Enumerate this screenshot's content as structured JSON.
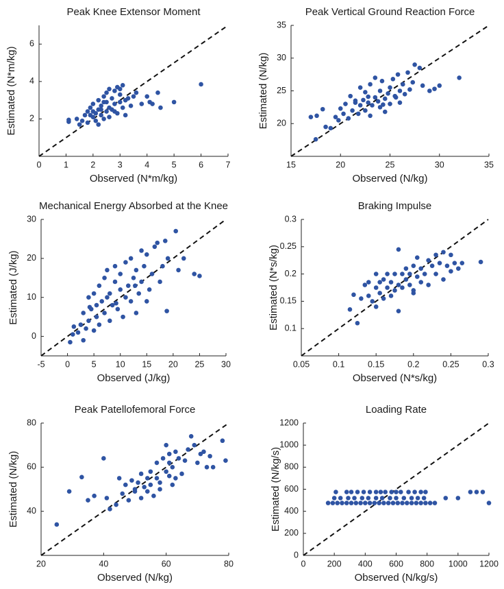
{
  "chart_data": [
    {
      "type": "scatter",
      "title": "Peak Knee Extensor Moment",
      "x_label": "Observed (N*m/kg)",
      "y_label": "Estimated (N*m/kg)",
      "xlim": [
        0,
        7
      ],
      "ylim": [
        0,
        7
      ],
      "xticks": [
        0,
        1,
        2,
        3,
        4,
        5,
        6,
        7
      ],
      "yticks": [
        2,
        4,
        6
      ],
      "identity_line": true,
      "color": "#2f54a3",
      "x": [
        1.1,
        1.1,
        1.4,
        1.5,
        1.6,
        1.7,
        1.8,
        1.8,
        1.9,
        2.0,
        2.0,
        2.1,
        2.1,
        2.2,
        2.2,
        2.3,
        2.3,
        2.4,
        2.4,
        2.5,
        2.5,
        2.5,
        2.6,
        2.6,
        2.7,
        2.7,
        2.8,
        2.8,
        2.9,
        2.9,
        3.0,
        3.0,
        3.1,
        3.1,
        3.2,
        3.2,
        3.3,
        3.4,
        3.5,
        3.6,
        3.8,
        4.0,
        4.1,
        4.2,
        4.4,
        4.5,
        5.0,
        6.0,
        2.2,
        2.6,
        2.0,
        2.4,
        1.9,
        2.8,
        3.0,
        2.3
      ],
      "values": [
        1.95,
        1.85,
        2.0,
        1.7,
        1.9,
        2.2,
        1.8,
        2.4,
        2.6,
        2.1,
        2.8,
        2.3,
        1.9,
        2.5,
        3.0,
        2.2,
        2.7,
        2.0,
        3.2,
        2.4,
        2.9,
        3.4,
        2.1,
        2.6,
        3.1,
        2.5,
        2.8,
        3.5,
        2.3,
        3.7,
        2.9,
        3.3,
        2.6,
        3.8,
        3.0,
        2.2,
        3.1,
        2.7,
        3.2,
        3.4,
        2.8,
        3.2,
        2.9,
        2.8,
        3.4,
        2.6,
        2.9,
        3.85,
        1.7,
        3.6,
        2.4,
        2.9,
        2.2,
        2.4,
        3.6,
        2.5
      ]
    },
    {
      "type": "scatter",
      "title": "Peak Vertical Ground Reaction Force",
      "x_label": "Observed (N/kg)",
      "y_label": "Estimated (N/kg)",
      "xlim": [
        15,
        35
      ],
      "ylim": [
        15,
        35
      ],
      "xticks": [
        15,
        20,
        25,
        30,
        35
      ],
      "yticks": [
        20,
        25,
        30,
        35
      ],
      "identity_line": true,
      "color": "#2f54a3",
      "x": [
        17.0,
        17.5,
        17.6,
        18.2,
        18.5,
        19.0,
        19.5,
        19.8,
        20.0,
        20.3,
        20.5,
        20.8,
        21.0,
        21.2,
        21.5,
        21.8,
        22.0,
        22.0,
        22.3,
        22.5,
        22.5,
        22.8,
        23.0,
        23.0,
        23.2,
        23.5,
        23.5,
        23.8,
        24.0,
        24.0,
        24.2,
        24.5,
        24.5,
        24.8,
        25.0,
        25.0,
        25.3,
        25.5,
        25.8,
        26.0,
        26.0,
        26.3,
        26.5,
        26.8,
        27.0,
        27.3,
        27.5,
        28.0,
        28.3,
        29.0,
        29.5,
        30.0,
        32.0,
        21.5,
        22.8,
        24.3,
        25.6
      ],
      "values": [
        21.0,
        17.6,
        21.2,
        22.2,
        19.5,
        19.3,
        21.0,
        20.5,
        22.3,
        21.5,
        23.0,
        20.8,
        24.2,
        22.0,
        23.5,
        21.5,
        22.8,
        25.5,
        23.6,
        22.0,
        24.8,
        23.2,
        21.2,
        26.0,
        22.8,
        24.0,
        27.0,
        23.4,
        22.5,
        25.0,
        26.5,
        23.8,
        21.8,
        24.6,
        25.5,
        23.0,
        26.8,
        24.2,
        27.5,
        25.0,
        23.2,
        26.0,
        24.5,
        27.8,
        25.2,
        26.3,
        29.0,
        28.5,
        25.8,
        25.0,
        25.3,
        25.8,
        27.0,
        23.2,
        24.1,
        22.9,
        24.0
      ]
    },
    {
      "type": "scatter",
      "title": "Mechanical Energy Absorbed at the Knee",
      "x_label": "Observed (J/kg)",
      "y_label": "Estimated (J/kg)",
      "xlim": [
        -5,
        30
      ],
      "ylim": [
        -5,
        30
      ],
      "xticks": [
        -5,
        0,
        5,
        10,
        15,
        20,
        25,
        30
      ],
      "yticks": [
        0,
        10,
        20,
        30
      ],
      "identity_line": true,
      "color": "#2f54a3",
      "x": [
        0.5,
        1,
        1.2,
        2,
        2.5,
        3,
        3,
        3.5,
        4,
        4,
        4.5,
        5,
        5,
        5.5,
        5.5,
        6,
        6,
        6.5,
        7,
        7,
        7.5,
        7.5,
        8,
        8,
        8.5,
        9,
        9,
        9.5,
        10,
        10,
        10.5,
        11,
        11,
        11.5,
        12,
        12,
        12.5,
        13,
        13,
        13.5,
        14,
        14,
        14.5,
        15,
        15,
        15.5,
        16,
        16.5,
        17,
        17.5,
        18,
        18.5,
        19,
        18.8,
        20.5,
        21,
        22,
        24,
        25,
        4.2,
        9.2,
        12.8
      ],
      "values": [
        -1.5,
        0.5,
        2.5,
        1,
        3,
        -1,
        6,
        2,
        4,
        10,
        7,
        1.5,
        11,
        5,
        8,
        3,
        13,
        9,
        6,
        15,
        10,
        17,
        4,
        11,
        8,
        14,
        18,
        7,
        12,
        16,
        5,
        10,
        19,
        13,
        9,
        20,
        15,
        6,
        17,
        11,
        14,
        22,
        18,
        9,
        21,
        12,
        16,
        23,
        24,
        14,
        18,
        24.5,
        20,
        6.5,
        27,
        17,
        20,
        16,
        15.5,
        7.5,
        8.5,
        13
      ]
    },
    {
      "type": "scatter",
      "title": "Braking Impulse",
      "x_label": "Observed (N*s/kg)",
      "y_label": "Estimated (N*s/kg)",
      "xlim": [
        0.05,
        0.3
      ],
      "ylim": [
        0.05,
        0.3
      ],
      "xticks": [
        0.05,
        0.1,
        0.15,
        0.2,
        0.25,
        0.3
      ],
      "yticks": [
        0.1,
        0.15,
        0.2,
        0.25,
        0.3
      ],
      "identity_line": true,
      "color": "#2f54a3",
      "x": [
        0.115,
        0.12,
        0.125,
        0.13,
        0.135,
        0.14,
        0.14,
        0.145,
        0.15,
        0.15,
        0.155,
        0.155,
        0.16,
        0.16,
        0.165,
        0.165,
        0.17,
        0.17,
        0.175,
        0.175,
        0.18,
        0.18,
        0.185,
        0.185,
        0.19,
        0.19,
        0.195,
        0.195,
        0.2,
        0.2,
        0.205,
        0.205,
        0.21,
        0.21,
        0.215,
        0.22,
        0.22,
        0.225,
        0.23,
        0.23,
        0.235,
        0.24,
        0.24,
        0.245,
        0.25,
        0.25,
        0.255,
        0.26,
        0.265,
        0.29,
        0.18,
        0.2,
        0.15
      ],
      "values": [
        0.135,
        0.162,
        0.11,
        0.155,
        0.18,
        0.16,
        0.185,
        0.15,
        0.175,
        0.2,
        0.165,
        0.185,
        0.155,
        0.19,
        0.175,
        0.2,
        0.16,
        0.185,
        0.17,
        0.2,
        0.18,
        0.245,
        0.175,
        0.2,
        0.19,
        0.21,
        0.18,
        0.2,
        0.17,
        0.215,
        0.195,
        0.23,
        0.185,
        0.21,
        0.2,
        0.18,
        0.225,
        0.215,
        0.2,
        0.235,
        0.22,
        0.19,
        0.24,
        0.215,
        0.205,
        0.235,
        0.22,
        0.21,
        0.22,
        0.222,
        0.132,
        0.165,
        0.14
      ]
    },
    {
      "type": "scatter",
      "title": "Peak Patellofemoral Force",
      "x_label": "Observed (N/kg)",
      "y_label": "Estimated (N/kg)",
      "xlim": [
        20,
        80
      ],
      "ylim": [
        20,
        80
      ],
      "xticks": [
        20,
        40,
        60,
        80
      ],
      "yticks": [
        40,
        60,
        80
      ],
      "identity_line": true,
      "color": "#2f54a3",
      "x": [
        25,
        29,
        33,
        35,
        37,
        40,
        41,
        42,
        44,
        45,
        46,
        47,
        48,
        49,
        50,
        51,
        52,
        52,
        53,
        54,
        54,
        55,
        55,
        56,
        57,
        57,
        58,
        59,
        60,
        60,
        61,
        61,
        62,
        62,
        63,
        63,
        64,
        65,
        66,
        67,
        68,
        69,
        70,
        71,
        72,
        73,
        74,
        75,
        78,
        79,
        50,
        58,
        61
      ],
      "values": [
        34,
        49,
        55.5,
        45,
        47,
        64,
        46,
        41,
        43,
        55,
        48,
        52,
        45,
        54,
        50,
        53,
        46,
        57,
        51,
        55,
        49,
        58,
        52,
        47,
        62,
        55,
        53,
        64,
        58,
        70,
        56,
        62,
        52,
        60,
        67,
        55,
        64,
        57,
        63,
        68,
        74,
        70,
        62,
        66,
        67,
        60,
        65,
        60,
        72,
        63,
        49,
        50,
        66
      ]
    },
    {
      "type": "scatter",
      "title": "Loading Rate",
      "x_label": "Observed (N/kg/s)",
      "y_label": "Estimated (N/kg/s)",
      "xlim": [
        0,
        1200
      ],
      "ylim": [
        0,
        1200
      ],
      "xticks": [
        0,
        200,
        400,
        600,
        800,
        1000,
        1200
      ],
      "yticks": [
        0,
        200,
        400,
        600,
        800,
        1000,
        1200
      ],
      "identity_line": true,
      "color": "#2f54a3",
      "x": [
        160,
        190,
        220,
        250,
        280,
        310,
        340,
        370,
        400,
        430,
        460,
        490,
        520,
        550,
        580,
        610,
        640,
        670,
        700,
        730,
        760,
        790,
        820,
        850,
        1200,
        200,
        240,
        290,
        330,
        380,
        420,
        470,
        510,
        560,
        600,
        650,
        700,
        740,
        780,
        920,
        1000,
        210,
        280,
        310,
        350,
        390,
        430,
        470,
        500,
        530,
        570,
        600,
        630,
        680,
        720,
        760,
        790,
        1080,
        1120,
        1160
      ],
      "values": [
        475,
        475,
        475,
        475,
        475,
        475,
        475,
        475,
        475,
        475,
        475,
        475,
        475,
        475,
        475,
        475,
        475,
        475,
        475,
        475,
        475,
        475,
        475,
        475,
        475,
        520,
        520,
        520,
        520,
        520,
        520,
        520,
        520,
        520,
        520,
        520,
        520,
        520,
        520,
        520,
        520,
        575,
        575,
        575,
        575,
        575,
        575,
        575,
        575,
        575,
        575,
        575,
        575,
        575,
        575,
        575,
        575,
        575,
        575,
        575
      ]
    }
  ]
}
